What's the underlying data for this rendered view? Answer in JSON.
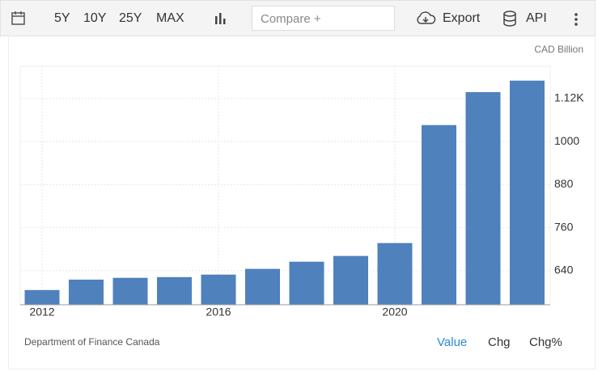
{
  "toolbar": {
    "ranges": [
      "5Y",
      "10Y",
      "25Y",
      "MAX"
    ],
    "compare_placeholder": "Compare +",
    "export": "Export",
    "api": "API"
  },
  "chart_data": {
    "type": "bar",
    "title": "CAD Billion",
    "categories": [
      "2012",
      null,
      null,
      null,
      "2016",
      null,
      null,
      null,
      "2020",
      null,
      null,
      null
    ],
    "values": [
      586,
      615,
      620,
      622,
      629,
      645,
      665,
      681,
      717,
      1046,
      1138,
      1170
    ],
    "color": "#4f81bd",
    "ylim": [
      545,
      1210
    ],
    "yticks": [
      640,
      760,
      880,
      1000,
      {
        "value": 1120,
        "label": "1.12K"
      }
    ],
    "grid": true
  },
  "footer": {
    "source": "Department of Finance Canada",
    "tabs": [
      "Value",
      "Chg",
      "Chg%"
    ]
  }
}
